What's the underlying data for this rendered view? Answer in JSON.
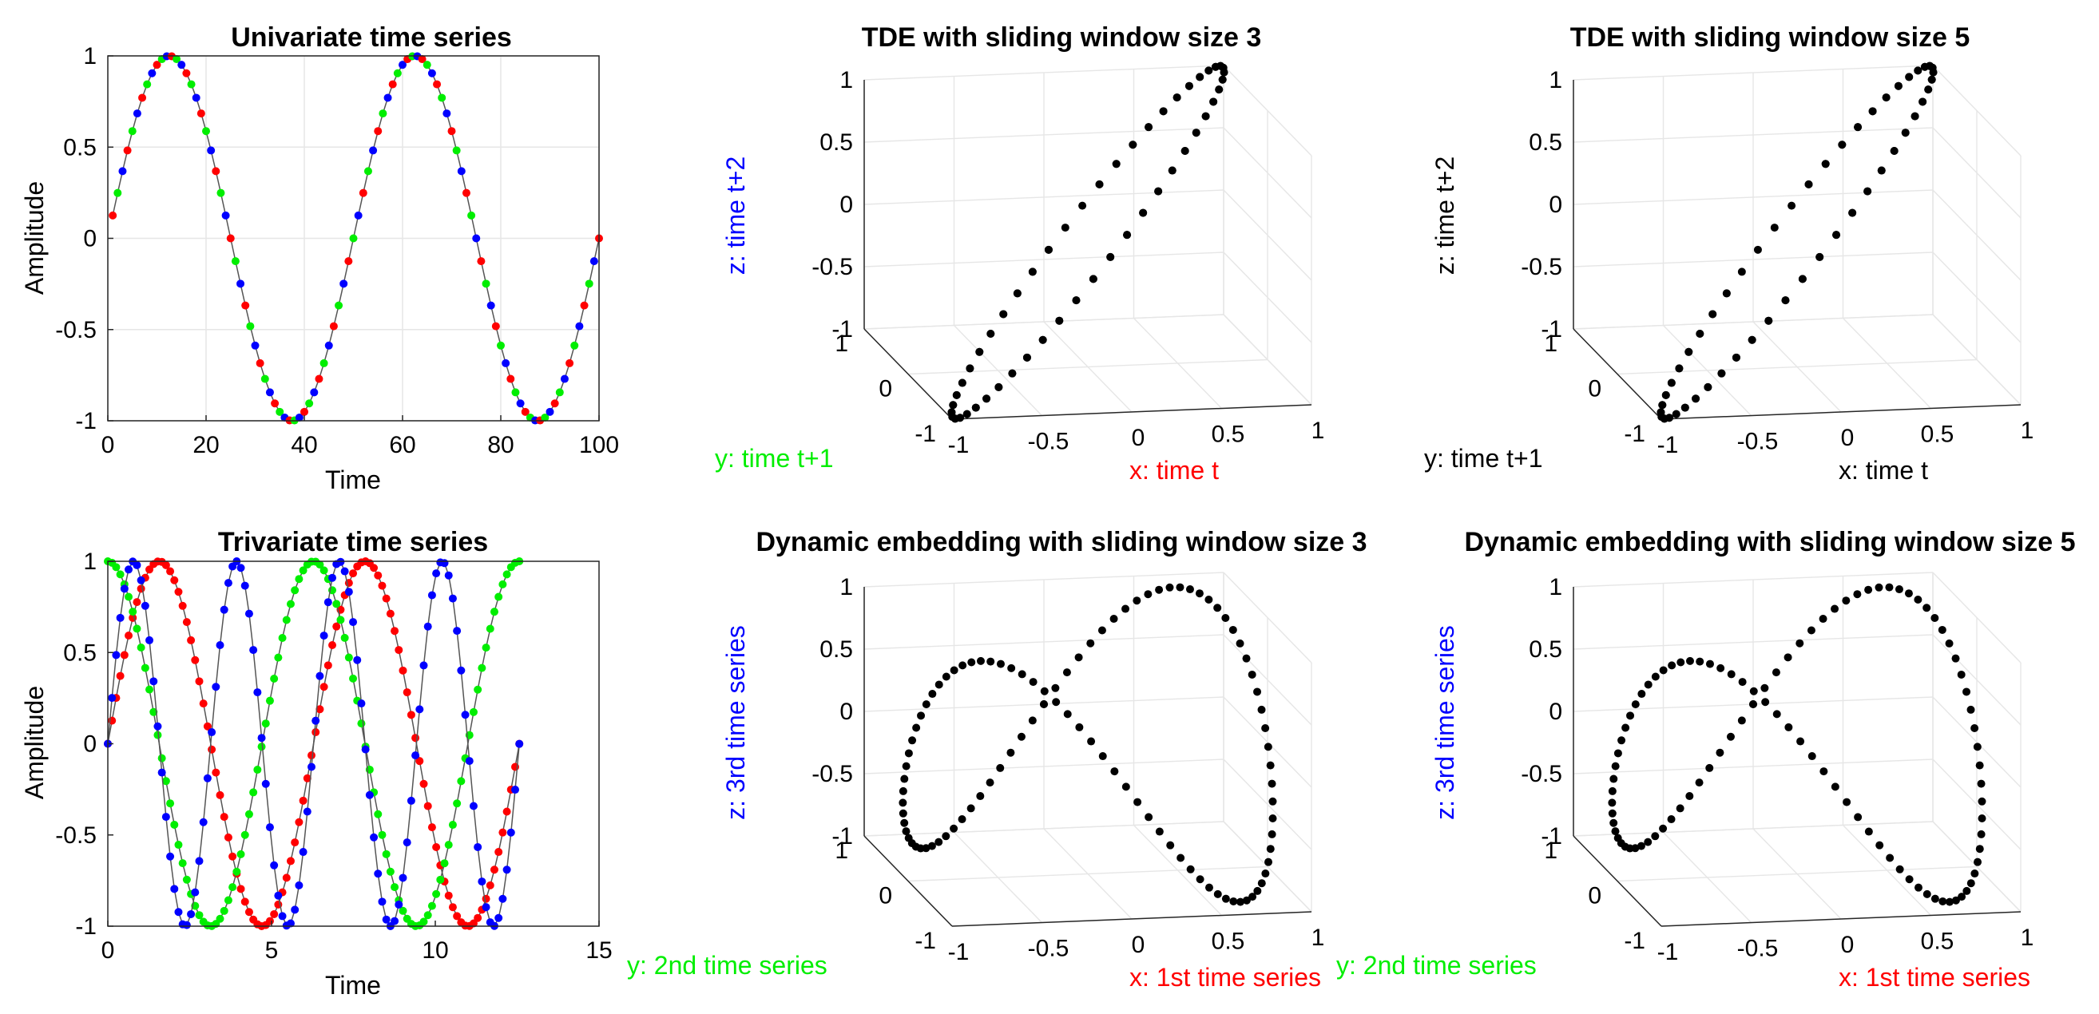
{
  "colors": {
    "red": "#ff0000",
    "green": "#00ee00",
    "blue": "#0000ff",
    "black": "#000000",
    "grid": "#e6e6e6",
    "line": "#555555"
  },
  "chart_data": [
    {
      "type": "line",
      "title": "Univariate time series",
      "xlabel": "Time",
      "ylabel": "Amplitude",
      "xlim": [
        0,
        100
      ],
      "ylim": [
        -1,
        1
      ],
      "xticks": [
        "0",
        "20",
        "40",
        "60",
        "80",
        "100"
      ],
      "yticks": [
        "-1",
        "-0.5",
        "0",
        "0.5",
        "1"
      ],
      "grid": true,
      "series": [
        {
          "function": "sin(2*pi*t/50)",
          "t_start": 1,
          "t_end": 100,
          "samples": 100,
          "marker_color_cycle": [
            "red",
            "green",
            "blue"
          ]
        }
      ]
    },
    {
      "type": "scatter",
      "dims": 3,
      "title": "TDE with sliding window size 3",
      "xlabel": "x: time t",
      "ylabel": "y: time t+1",
      "zlabel": "z: time t+2",
      "label_colors": {
        "x": "red",
        "y": "green",
        "z": "blue"
      },
      "xlim": [
        -1,
        1
      ],
      "ylim": [
        -1,
        1
      ],
      "zlim": [
        -1,
        1
      ],
      "xticks": [
        "-1",
        "-0.5",
        "0",
        "0.5",
        "1"
      ],
      "yticks": [
        "-1",
        "0",
        "1"
      ],
      "zticks": [
        "-1",
        "-0.5",
        "0",
        "0.5",
        "1"
      ],
      "points": {
        "x": "sin(2*pi*t/50)",
        "y": "sin(2*pi*(t+1)/50)",
        "z": "sin(2*pi*(t+2)/50)",
        "samples": 98
      }
    },
    {
      "type": "scatter",
      "dims": 3,
      "title": "TDE with sliding window size 5",
      "xlabel": "x: time t",
      "ylabel": "y: time t+1",
      "zlabel": "z: time t+2",
      "label_colors": {
        "x": "black",
        "y": "black",
        "z": "black"
      },
      "xlim": [
        -1,
        1
      ],
      "ylim": [
        -1,
        1
      ],
      "zlim": [
        -1,
        1
      ],
      "xticks": [
        "-1",
        "-0.5",
        "0",
        "0.5",
        "1"
      ],
      "yticks": [
        "-1",
        "0",
        "1"
      ],
      "zticks": [
        "-1",
        "-0.5",
        "0",
        "0.5",
        "1"
      ],
      "points": {
        "x": "sin(2*pi*t/50)",
        "y": "sin(2*pi*(t+1)/50)",
        "z": "sin(2*pi*(t+2)/50)",
        "samples": 96
      }
    },
    {
      "type": "line",
      "title": "Trivariate time series",
      "xlabel": "Time",
      "ylabel": "Amplitude",
      "xlim": [
        0,
        15
      ],
      "ylim": [
        -1,
        1
      ],
      "xticks": [
        "0",
        "5",
        "10",
        "15"
      ],
      "yticks": [
        "-1",
        "-0.5",
        "0",
        "0.5",
        "1"
      ],
      "grid": false,
      "t_range": [
        0,
        12.566
      ],
      "series": [
        {
          "function": "sin(t)",
          "color": "red"
        },
        {
          "function": "cos(t)",
          "color": "green"
        },
        {
          "function": "sin(2*t)",
          "color": "blue"
        }
      ]
    },
    {
      "type": "scatter",
      "dims": 3,
      "title": "Dynamic embedding with sliding window size 3",
      "xlabel": "x: 1st time series",
      "ylabel": "y: 2nd time series",
      "zlabel": "z: 3rd time series",
      "label_colors": {
        "x": "red",
        "y": "green",
        "z": "blue"
      },
      "xlim": [
        -1,
        1
      ],
      "ylim": [
        -1,
        1
      ],
      "zlim": [
        -1,
        1
      ],
      "xticks": [
        "-1",
        "-0.5",
        "0",
        "0.5",
        "1"
      ],
      "yticks": [
        "-1",
        "0",
        "1"
      ],
      "zticks": [
        "-1",
        "-0.5",
        "0",
        "0.5",
        "1"
      ],
      "points": {
        "x": "sin(t)",
        "y": "cos(t)",
        "z": "sin(2*t)",
        "samples": 100
      }
    },
    {
      "type": "scatter",
      "dims": 3,
      "title": "Dynamic embedding with sliding window size 5",
      "xlabel": "x: 1st time series",
      "ylabel": "y: 2nd time series",
      "zlabel": "z: 3rd time series",
      "label_colors": {
        "x": "red",
        "y": "green",
        "z": "blue"
      },
      "xlim": [
        -1,
        1
      ],
      "ylim": [
        -1,
        1
      ],
      "zlim": [
        -1,
        1
      ],
      "xticks": [
        "-1",
        "-0.5",
        "0",
        "0.5",
        "1"
      ],
      "yticks": [
        "-1",
        "0",
        "1"
      ],
      "zticks": [
        "-1",
        "-0.5",
        "0",
        "0.5",
        "1"
      ],
      "points": {
        "x": "sin(t)",
        "y": "cos(t)",
        "z": "sin(2*t)",
        "samples": 100
      }
    }
  ]
}
